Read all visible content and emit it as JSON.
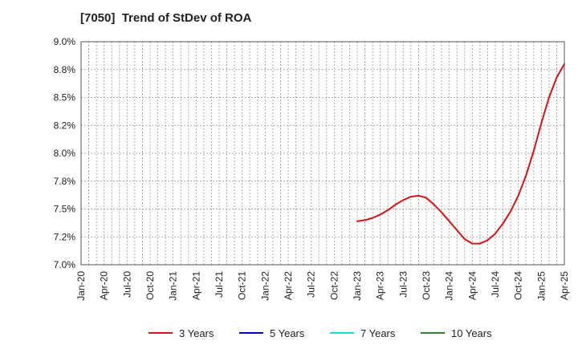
{
  "chart_data": {
    "type": "line",
    "title": "[7050]  Trend of StDev of ROA",
    "xlabel": "",
    "ylabel": "",
    "ylim": [
      7.0,
      9.0
    ],
    "y_ticks": [
      "9.0%",
      "8.8%",
      "8.5%",
      "8.2%",
      "8.0%",
      "7.8%",
      "7.5%",
      "7.2%",
      "7.0%"
    ],
    "y_tick_values": [
      9.0,
      8.75,
      8.5,
      8.25,
      8.0,
      7.75,
      7.5,
      7.25,
      7.0
    ],
    "categories": [
      "Jan-20",
      "Apr-20",
      "Jul-20",
      "Oct-20",
      "Jan-21",
      "Apr-21",
      "Jul-21",
      "Oct-21",
      "Jan-22",
      "Apr-22",
      "Jul-22",
      "Oct-22",
      "Jan-23",
      "Apr-23",
      "Jul-23",
      "Oct-23",
      "Jan-24",
      "Apr-24",
      "Jul-24",
      "Oct-24",
      "Jan-25",
      "Apr-25"
    ],
    "months_total": 63,
    "grid": true,
    "series": [
      {
        "name": "3 Years",
        "color": "#dd1111",
        "points": [
          [
            36,
            7.39
          ],
          [
            37,
            7.4
          ],
          [
            38,
            7.42
          ],
          [
            39,
            7.45
          ],
          [
            40,
            7.49
          ],
          [
            41,
            7.54
          ],
          [
            42,
            7.58
          ],
          [
            43,
            7.61
          ],
          [
            44,
            7.62
          ],
          [
            45,
            7.6
          ],
          [
            46,
            7.54
          ],
          [
            47,
            7.47
          ],
          [
            48,
            7.39
          ],
          [
            49,
            7.31
          ],
          [
            50,
            7.23
          ],
          [
            51,
            7.19
          ],
          [
            52,
            7.19
          ],
          [
            53,
            7.22
          ],
          [
            54,
            7.28
          ],
          [
            55,
            7.37
          ],
          [
            56,
            7.48
          ],
          [
            57,
            7.62
          ],
          [
            58,
            7.8
          ],
          [
            59,
            8.02
          ],
          [
            60,
            8.27
          ],
          [
            61,
            8.5
          ],
          [
            62,
            8.68
          ],
          [
            63,
            8.8
          ]
        ]
      },
      {
        "name": "5 Years",
        "color": "#0000cc",
        "points": []
      },
      {
        "name": "7 Years",
        "color": "#00e5ee",
        "points": []
      },
      {
        "name": "10 Years",
        "color": "#228b22",
        "points": []
      }
    ]
  }
}
